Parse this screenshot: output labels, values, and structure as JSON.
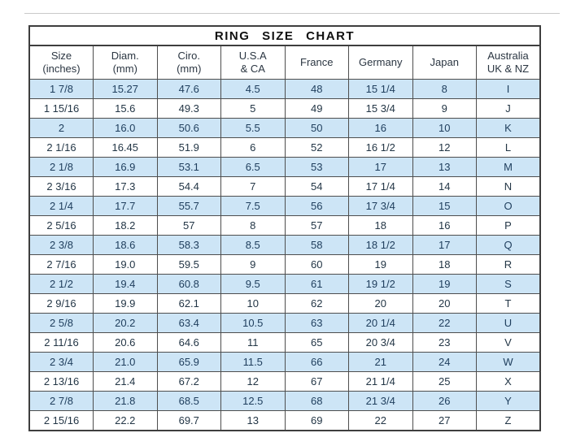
{
  "title": "RING SIZE CHART",
  "colors": {
    "stripe_blue": "#cde5f6",
    "border": "#4e4e4e",
    "text": "#233646"
  },
  "chart_data": {
    "type": "table",
    "title": "RING SIZE CHART",
    "columns": [
      {
        "line1": "Size",
        "line2": "(inches)"
      },
      {
        "line1": "Diam.",
        "line2": "(mm)"
      },
      {
        "line1": "Ciro.",
        "line2": "(mm)"
      },
      {
        "line1": "U.S.A",
        "line2": "& CA"
      },
      {
        "line1": "France",
        "line2": ""
      },
      {
        "line1": "Germany",
        "line2": ""
      },
      {
        "line1": "Japan",
        "line2": ""
      },
      {
        "line1": "Australia",
        "line2": "UK & NZ"
      }
    ],
    "rows": [
      [
        "1 7/8",
        "15.27",
        "47.6",
        "4.5",
        "48",
        "15 1/4",
        "8",
        "I"
      ],
      [
        "1 15/16",
        "15.6",
        "49.3",
        "5",
        "49",
        "15 3/4",
        "9",
        "J"
      ],
      [
        "2",
        "16.0",
        "50.6",
        "5.5",
        "50",
        "16",
        "10",
        "K"
      ],
      [
        "2 1/16",
        "16.45",
        "51.9",
        "6",
        "52",
        "16 1/2",
        "12",
        "L"
      ],
      [
        "2 1/8",
        "16.9",
        "53.1",
        "6.5",
        "53",
        "17",
        "13",
        "M"
      ],
      [
        "2 3/16",
        "17.3",
        "54.4",
        "7",
        "54",
        "17 1/4",
        "14",
        "N"
      ],
      [
        "2 1/4",
        "17.7",
        "55.7",
        "7.5",
        "56",
        "17 3/4",
        "15",
        "O"
      ],
      [
        "2 5/16",
        "18.2",
        "57",
        "8",
        "57",
        "18",
        "16",
        "P"
      ],
      [
        "2 3/8",
        "18.6",
        "58.3",
        "8.5",
        "58",
        "18 1/2",
        "17",
        "Q"
      ],
      [
        "2 7/16",
        "19.0",
        "59.5",
        "9",
        "60",
        "19",
        "18",
        "R"
      ],
      [
        "2 1/2",
        "19.4",
        "60.8",
        "9.5",
        "61",
        "19 1/2",
        "19",
        "S"
      ],
      [
        "2 9/16",
        "19.9",
        "62.1",
        "10",
        "62",
        "20",
        "20",
        "T"
      ],
      [
        "2 5/8",
        "20.2",
        "63.4",
        "10.5",
        "63",
        "20 1/4",
        "22",
        "U"
      ],
      [
        "2 11/16",
        "20.6",
        "64.6",
        "11",
        "65",
        "20 3/4",
        "23",
        "V"
      ],
      [
        "2 3/4",
        "21.0",
        "65.9",
        "11.5",
        "66",
        "21",
        "24",
        "W"
      ],
      [
        "2 13/16",
        "21.4",
        "67.2",
        "12",
        "67",
        "21 1/4",
        "25",
        "X"
      ],
      [
        "2 7/8",
        "21.8",
        "68.5",
        "12.5",
        "68",
        "21 3/4",
        "26",
        "Y"
      ],
      [
        "2 15/16",
        "22.2",
        "69.7",
        "13",
        "69",
        "22",
        "27",
        "Z"
      ]
    ]
  }
}
